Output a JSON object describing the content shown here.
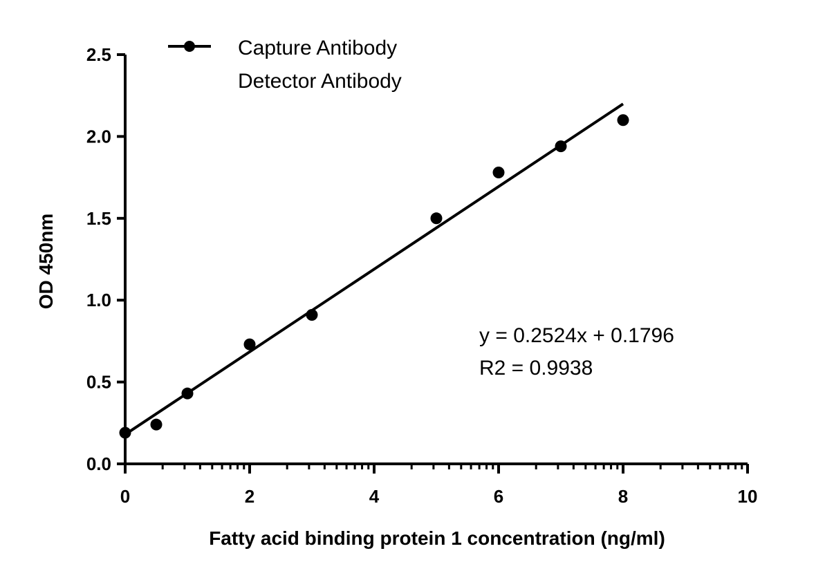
{
  "chart_data": {
    "type": "scatter",
    "title": "",
    "xlabel": "Fatty acid binding protein 1 concentration (ng/ml)",
    "ylabel": "OD 450nm",
    "xlim": [
      0,
      10
    ],
    "ylim": [
      0,
      2.5
    ],
    "x_ticks": [
      "0",
      "2",
      "4",
      "6",
      "8",
      "10"
    ],
    "y_ticks": [
      "0.0",
      "0.5",
      "1.0",
      "1.5",
      "2.0",
      "2.5"
    ],
    "grid": false,
    "legend": {
      "placement": "top-left",
      "entries": [
        "Capture Antibody",
        "Detector Antibody"
      ]
    },
    "series": [
      {
        "name": "Capture Antibody",
        "x": [
          0,
          0.5,
          1,
          2,
          3,
          5,
          6,
          7,
          8
        ],
        "y": [
          0.19,
          0.24,
          0.43,
          0.73,
          0.91,
          1.5,
          1.78,
          1.94,
          2.1
        ],
        "color": "#000000"
      }
    ],
    "fit_line": {
      "slope": 0.2524,
      "intercept": 0.1796,
      "x_range": [
        0,
        8
      ],
      "color": "#000000"
    },
    "annotations": [
      "y = 0.2524x + 0.1796",
      "R2 = 0.9938"
    ]
  }
}
